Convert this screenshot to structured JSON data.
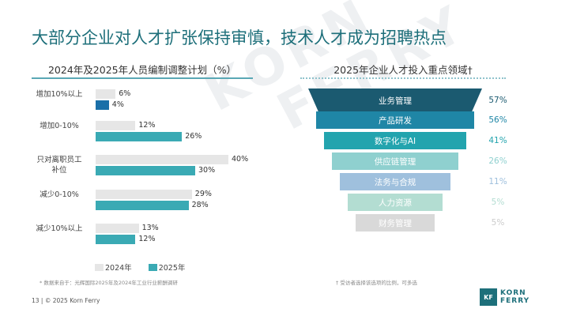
{
  "title": "大部分企业对人才扩张保持审慎，技术人才成为招聘热点",
  "watermark": [
    "KORN",
    "FERRY"
  ],
  "chart_data": [
    {
      "type": "bar",
      "orientation": "horizontal",
      "title": "2024年及2025年人员编制调整计划（%）",
      "categories": [
        "增加10%以上",
        "增加0-10%",
        "只对离职员工补位",
        "减少0-10%",
        "减少10%以上"
      ],
      "series": [
        {
          "name": "2024年",
          "color": "#e6e6e6",
          "values": [
            6,
            12,
            40,
            29,
            13
          ]
        },
        {
          "name": "2025年",
          "color": "#3aaab4",
          "values": [
            4,
            26,
            30,
            28,
            12
          ]
        }
      ],
      "value_suffix": "%",
      "legend": "bottom"
    },
    {
      "type": "bar",
      "orientation": "funnel",
      "title": "2025年企业人才投入重点领域†",
      "categories": [
        "业务管理",
        "产品研发",
        "数字化与AI",
        "供应链管理",
        "法务与合规",
        "人力资源",
        "财务管理"
      ],
      "values": [
        57,
        56,
        41,
        26,
        11,
        5,
        5
      ],
      "value_suffix": "%",
      "colors": [
        "#1b5a70",
        "#1f86a6",
        "#23a4ae",
        "#8fd0cf",
        "#9fc0dd",
        "#b3ddd2",
        "#d9d9d9"
      ],
      "value_colors": [
        "#1b5a70",
        "#1f86a6",
        "#23a4ae",
        "#8fd0cf",
        "#9fc0dd",
        "#b3ddd2",
        "#cccccc"
      ]
    }
  ],
  "footnotes": {
    "left": "* 数据来自于：光辉国际2025年及2024年工业行业薪酬调研",
    "right": "† 受访者选择该选项的比例，可多选"
  },
  "footer": "13  |  © 2025 Korn Ferry",
  "logo": {
    "mark": "KF",
    "line1": "KORN",
    "line2": "FERRY"
  }
}
